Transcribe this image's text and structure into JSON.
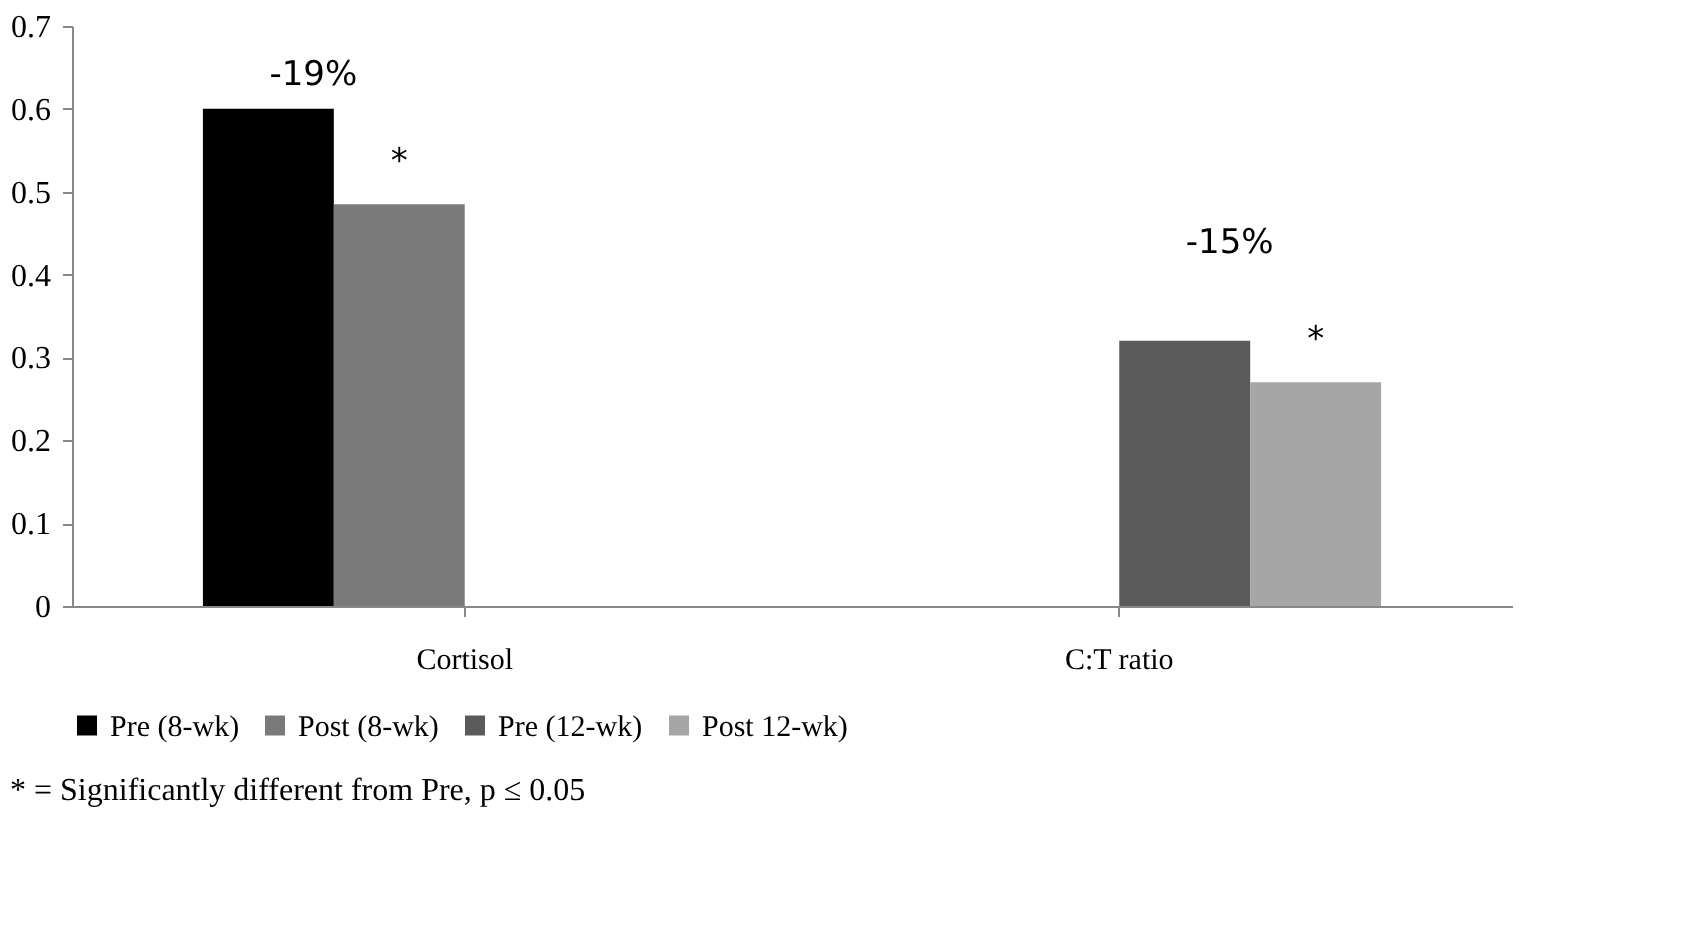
{
  "chart_data": {
    "type": "bar",
    "categories": [
      "Cortisol",
      "C:T ratio"
    ],
    "series": [
      {
        "name": "Pre (8-wk)",
        "color": "#000000",
        "values": [
          0.6,
          null
        ]
      },
      {
        "name": "Post (8-wk)",
        "color": "#7a7a7a",
        "values": [
          0.485,
          null
        ],
        "value_labels": [
          "*",
          null
        ]
      },
      {
        "name": "Pre (12-wk)",
        "color": "#5a5a5a",
        "values": [
          null,
          0.32
        ]
      },
      {
        "name": "Post 12-wk)",
        "color": "#a6a6a6",
        "values": [
          null,
          0.27
        ],
        "value_labels": [
          null,
          "*"
        ]
      }
    ],
    "ylim": [
      0,
      0.7
    ],
    "yticks": [
      {
        "value": 0,
        "label": "0"
      },
      0.1,
      0.2,
      0.3,
      0.4,
      0.5,
      0.6,
      0.7
    ],
    "grid": false,
    "legend": "bottom",
    "annotations": [
      "-19%",
      "-15%",
      "* = Significantly different from Pre, p ≤ 0.05"
    ]
  }
}
